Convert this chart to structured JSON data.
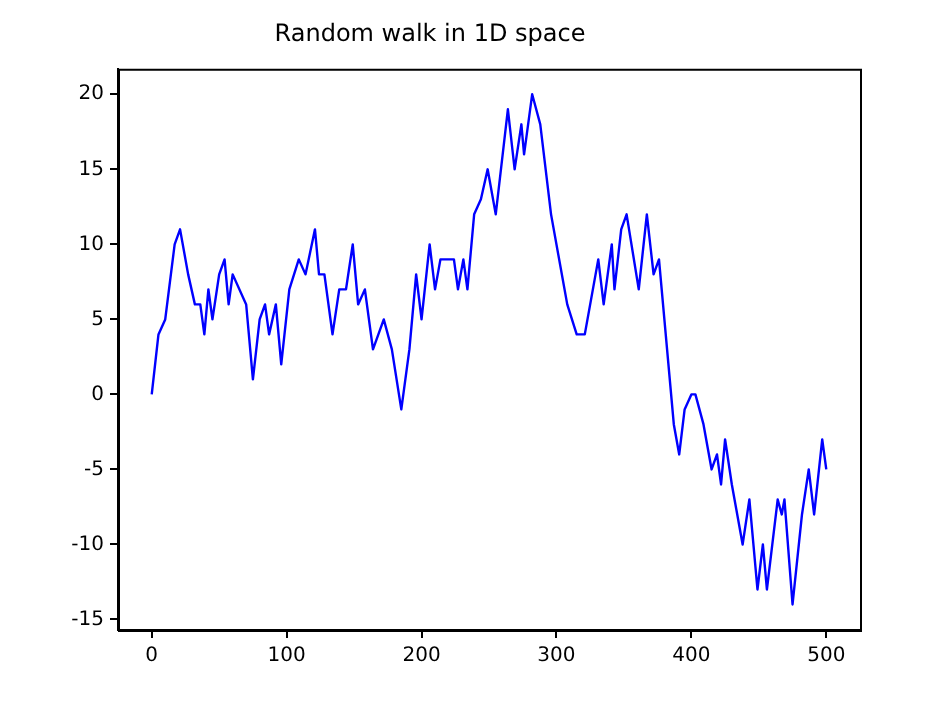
{
  "chart_data": {
    "type": "line",
    "title": "Random walk in 1D space",
    "x": [
      0,
      5,
      10,
      17,
      21,
      27,
      32,
      36,
      39,
      42,
      45,
      50,
      54,
      57,
      60,
      70,
      75,
      80,
      84,
      87,
      92,
      96,
      102,
      109,
      114,
      121,
      124,
      128,
      134,
      139,
      144,
      149,
      153,
      158,
      164,
      172,
      178,
      185,
      191,
      196,
      200,
      206,
      210,
      214,
      224,
      227,
      231,
      234,
      239,
      244,
      249,
      255,
      264,
      269,
      274,
      276,
      282,
      288,
      296,
      308,
      315,
      321,
      331,
      335,
      341,
      343,
      348,
      352,
      361,
      367,
      372,
      376,
      387,
      391,
      395,
      400,
      403,
      409,
      415,
      419,
      422,
      425,
      430,
      438,
      443,
      449,
      453,
      456,
      460,
      464,
      467,
      469,
      475,
      482,
      487,
      491,
      497,
      500
    ],
    "series": [
      {
        "color": "#0000ff",
        "values": [
          0,
          4,
          5,
          10,
          11,
          8,
          6,
          6,
          4,
          7,
          5,
          8,
          9,
          6,
          8,
          6,
          1,
          5,
          6,
          4,
          6,
          2,
          7,
          9,
          8,
          11,
          8,
          8,
          4,
          7,
          7,
          10,
          6,
          7,
          3,
          5,
          3,
          -1,
          3,
          8,
          5,
          10,
          7,
          9,
          9,
          7,
          9,
          7,
          12,
          13,
          15,
          12,
          19,
          15,
          18,
          16,
          20,
          18,
          12,
          6,
          4,
          4,
          9,
          6,
          10,
          7,
          11,
          12,
          7,
          12,
          8,
          9,
          -2,
          -4,
          -1,
          0,
          0,
          -2,
          -5,
          -4,
          -6,
          -3,
          -6,
          -10,
          -7,
          -13,
          -10,
          -13,
          -10,
          -7,
          -8,
          -7,
          -14,
          -8,
          -5,
          -8,
          -3,
          -5
        ]
      }
    ],
    "xlim": [
      -25,
      525
    ],
    "xticks": [
      0,
      100,
      200,
      300,
      400,
      500
    ],
    "ylim": [
      -15.7,
      21.7
    ],
    "yticks": [
      -15,
      -10,
      -5,
      0,
      5,
      10,
      15,
      20
    ],
    "grid": false,
    "legend": false,
    "marker": "none",
    "line_style": "solid"
  }
}
